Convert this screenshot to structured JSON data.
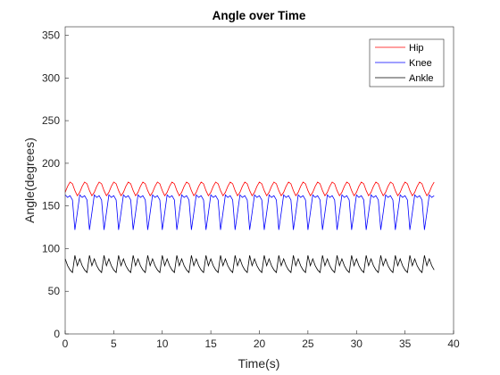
{
  "chart_data": {
    "type": "line",
    "title": "Angle over Time",
    "x_label": "Time(s)",
    "y_label": "Angle(degrees)",
    "xlim": [
      0,
      40
    ],
    "xticks": [
      0,
      5,
      10,
      15,
      20,
      25,
      30,
      35,
      40
    ],
    "ylim": [
      0,
      360
    ],
    "yticks": [
      0,
      50,
      100,
      150,
      200,
      250,
      300,
      350
    ],
    "legend": "northeast",
    "x": [
      0,
      0.25,
      0.5,
      0.75,
      1,
      1.25,
      1.5,
      1.75,
      2,
      2.25,
      2.5,
      2.75,
      3,
      3.25,
      3.5,
      3.75,
      4,
      4.25,
      4.5,
      4.75,
      5,
      5.25,
      5.5,
      5.75,
      6,
      6.25,
      6.5,
      6.75,
      7,
      7.25,
      7.5,
      7.75,
      8,
      8.25,
      8.5,
      8.75,
      9,
      9.25,
      9.5,
      9.75,
      10,
      10.25,
      10.5,
      10.75,
      11,
      11.25,
      11.5,
      11.75,
      12,
      12.25,
      12.5,
      12.75,
      13,
      13.25,
      13.5,
      13.75,
      14,
      14.25,
      14.5,
      14.75,
      15,
      15.25,
      15.5,
      15.75,
      16,
      16.25,
      16.5,
      16.75,
      17,
      17.25,
      17.5,
      17.75,
      18,
      18.25,
      18.5,
      18.75,
      19,
      19.25,
      19.5,
      19.75,
      20,
      20.25,
      20.5,
      20.75,
      21,
      21.25,
      21.5,
      21.75,
      22,
      22.25,
      22.5,
      22.75,
      23,
      23.25,
      23.5,
      23.75,
      24,
      24.25,
      24.5,
      24.75,
      25,
      25.25,
      25.5,
      25.75,
      26,
      26.25,
      26.5,
      26.75,
      27,
      27.25,
      27.5,
      27.75,
      28,
      28.25,
      28.5,
      28.75,
      29,
      29.25,
      29.5,
      29.75,
      30,
      30.25,
      30.5,
      30.75,
      31,
      31.25,
      31.5,
      31.75,
      32,
      32.25,
      32.5,
      32.75,
      33,
      33.25,
      33.5,
      33.75,
      34,
      34.25,
      34.5,
      34.75,
      35,
      35.25,
      35.5,
      35.75,
      36,
      36.25,
      36.5,
      36.75,
      37,
      37.25,
      37.5,
      37.75,
      38
    ],
    "series": [
      {
        "name": "Hip",
        "color": "#ff0000",
        "values": [
          166,
          173,
          178,
          176,
          168,
          162,
          166,
          173,
          178,
          176,
          168,
          162,
          166,
          173,
          178,
          176,
          168,
          162,
          166,
          173,
          178,
          176,
          168,
          162,
          166,
          173,
          178,
          176,
          168,
          162,
          166,
          173,
          178,
          176,
          168,
          162,
          166,
          173,
          178,
          176,
          168,
          162,
          166,
          173,
          178,
          176,
          168,
          162,
          166,
          173,
          178,
          176,
          168,
          162,
          166,
          173,
          178,
          176,
          168,
          162,
          166,
          173,
          178,
          176,
          168,
          162,
          166,
          173,
          178,
          176,
          168,
          162,
          166,
          173,
          178,
          176,
          168,
          162,
          166,
          173,
          178,
          176,
          168,
          162,
          166,
          173,
          178,
          176,
          168,
          162,
          166,
          173,
          178,
          176,
          168,
          162,
          166,
          173,
          178,
          176,
          168,
          162,
          166,
          173,
          178,
          176,
          168,
          162,
          166,
          173,
          178,
          176,
          168,
          162,
          166,
          173,
          178,
          176,
          168,
          162,
          166,
          173,
          178,
          176,
          168,
          162,
          166,
          173,
          178,
          176,
          168,
          162,
          166,
          173,
          178,
          176,
          168,
          162,
          166,
          173,
          178,
          176,
          168,
          162,
          166,
          173,
          178,
          176,
          168,
          162,
          166,
          173,
          178
        ]
      },
      {
        "name": "Knee",
        "color": "#0000ff",
        "values": [
          163,
          160,
          162,
          157,
          122,
          142,
          163,
          160,
          162,
          157,
          122,
          142,
          163,
          160,
          162,
          157,
          122,
          142,
          163,
          160,
          162,
          157,
          122,
          142,
          163,
          160,
          162,
          157,
          122,
          142,
          163,
          160,
          162,
          157,
          122,
          142,
          163,
          160,
          162,
          157,
          122,
          142,
          163,
          160,
          162,
          157,
          122,
          142,
          163,
          160,
          162,
          157,
          122,
          142,
          163,
          160,
          162,
          157,
          122,
          142,
          163,
          160,
          162,
          157,
          122,
          142,
          163,
          160,
          162,
          157,
          122,
          142,
          163,
          160,
          162,
          157,
          122,
          142,
          163,
          160,
          162,
          157,
          122,
          142,
          163,
          160,
          162,
          157,
          122,
          142,
          163,
          160,
          162,
          157,
          122,
          142,
          163,
          160,
          162,
          157,
          122,
          142,
          163,
          160,
          162,
          157,
          122,
          142,
          163,
          160,
          162,
          157,
          122,
          142,
          163,
          160,
          162,
          157,
          122,
          142,
          163,
          160,
          162,
          157,
          122,
          142,
          163,
          160,
          162,
          157,
          122,
          142,
          163,
          160,
          162,
          157,
          122,
          142,
          163,
          160,
          162,
          157,
          122,
          142,
          163,
          160,
          162,
          157,
          122,
          142,
          163,
          160,
          162
        ]
      },
      {
        "name": "Ankle",
        "color": "#000000",
        "values": [
          88,
          80,
          75,
          72,
          92,
          80,
          88,
          80,
          75,
          72,
          92,
          80,
          88,
          80,
          75,
          72,
          92,
          80,
          88,
          80,
          75,
          72,
          92,
          80,
          88,
          80,
          75,
          72,
          92,
          80,
          88,
          80,
          75,
          72,
          92,
          80,
          88,
          80,
          75,
          72,
          92,
          80,
          88,
          80,
          75,
          72,
          92,
          80,
          88,
          80,
          75,
          72,
          92,
          80,
          88,
          80,
          75,
          72,
          92,
          80,
          88,
          80,
          75,
          72,
          92,
          80,
          88,
          80,
          75,
          72,
          92,
          80,
          88,
          80,
          75,
          72,
          92,
          80,
          88,
          80,
          75,
          72,
          92,
          80,
          88,
          80,
          75,
          72,
          92,
          80,
          88,
          80,
          75,
          72,
          92,
          80,
          88,
          80,
          75,
          72,
          92,
          80,
          88,
          80,
          75,
          72,
          92,
          80,
          88,
          80,
          75,
          72,
          92,
          80,
          88,
          80,
          75,
          72,
          92,
          80,
          88,
          80,
          75,
          72,
          92,
          80,
          88,
          80,
          75,
          72,
          92,
          80,
          88,
          80,
          75,
          72,
          92,
          80,
          88,
          80,
          75,
          72,
          92,
          80,
          88,
          80,
          75,
          72,
          92,
          80,
          88,
          80,
          75
        ]
      }
    ]
  }
}
